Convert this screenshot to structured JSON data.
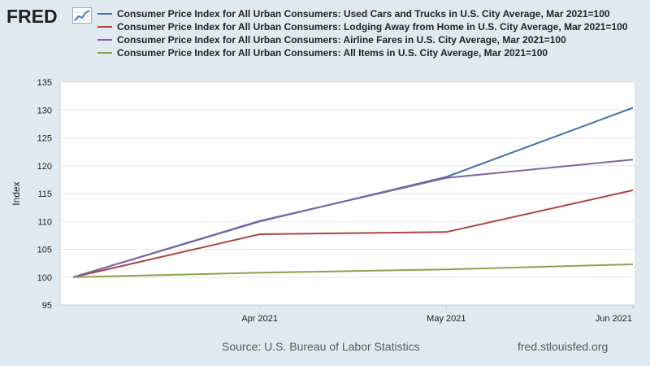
{
  "brand": {
    "name": "FRED"
  },
  "chart_data": {
    "type": "line",
    "ylabel": "Index",
    "xlabel": "",
    "ylim": [
      95,
      135
    ],
    "yticks": [
      95,
      100,
      105,
      110,
      115,
      120,
      125,
      130,
      135
    ],
    "x": [
      "2021-03-01",
      "2021-04-01",
      "2021-05-01",
      "2021-06-01"
    ],
    "xtick_labels": [
      "Apr 2021",
      "May 2021",
      "Jun 2021"
    ],
    "grid": true,
    "series": [
      {
        "name": "Consumer Price Index for All Urban Consumers: Used Cars and Trucks in U.S. City Average, Mar 2021=100",
        "color": "#4572a7",
        "values": [
          100.0,
          110.0,
          118.0,
          130.4
        ]
      },
      {
        "name": "Consumer Price Index for All Urban Consumers: Lodging Away from Home in U.S. City Average, Mar 2021=100",
        "color": "#aa4643",
        "values": [
          100.0,
          107.7,
          108.1,
          115.6
        ]
      },
      {
        "name": "Consumer Price Index for All Urban Consumers: Airline Fares in U.S. City Average, Mar 2021=100",
        "color": "#8064a2",
        "values": [
          100.0,
          110.1,
          117.8,
          121.1
        ]
      },
      {
        "name": "Consumer Price Index for All Urban Consumers: All Items in U.S. City Average, Mar 2021=100",
        "color": "#89a54e",
        "values": [
          100.0,
          100.8,
          101.4,
          102.3
        ]
      }
    ]
  },
  "footer": {
    "source": "Source: U.S. Bureau of Labor Statistics",
    "site": "fred.stlouisfed.org"
  }
}
